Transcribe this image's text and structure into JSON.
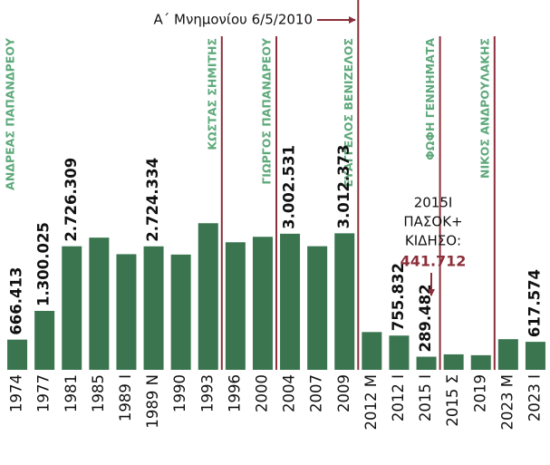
{
  "chart_data": {
    "type": "bar",
    "categories": [
      "1974",
      "1977",
      "1981",
      "1985",
      "1989 I",
      "1989 N",
      "1990",
      "1993",
      "1996",
      "2000",
      "2004",
      "2007",
      "2009",
      "2012 M",
      "2012 I",
      "2015 I",
      "2015 Σ",
      "2019",
      "2023 M",
      "2023 I"
    ],
    "values": [
      666413,
      1300025,
      2726309,
      2916735,
      2551518,
      2724334,
      2543042,
      3235017,
      2814779,
      2934948,
      3002531,
      2727279,
      3012373,
      833452,
      755832,
      289482,
      341390,
      322597,
      676166,
      617574
    ],
    "value_labels": [
      "666.413",
      "1.300.025",
      "2.726.309",
      null,
      null,
      "2.724.334",
      null,
      null,
      null,
      null,
      "3.002.531",
      null,
      "3.012.373",
      null,
      "755.832",
      "289.482",
      null,
      null,
      null,
      "617.574"
    ],
    "color": "#3b7550",
    "ylim": [
      0,
      4000000
    ],
    "leaders": [
      "ΑΝΔΡΕΑΣ ΠΑΠΑΝΔΡΕΟΥ",
      "ΚΩΣΤΑΣ ΣΗΜΙΤΗΣ",
      "ΓΙΩΡΓΟΣ ΠΑΠΑΝΔΡΕΟΥ",
      "ΕΥΑΓΓΕΛΟΣ ΒΕΝΙΖΕΛΟΣ",
      "ΦΩΦΗ ΓΕΝΝΗΜΑΤΑ",
      "ΝΙΚΟΣ ΑΝΔΡΟΥΛΑΚΗΣ"
    ],
    "memorandum": "Α΄ Μνημονίου 6/5/2010",
    "note": {
      "lines": [
        "2015Ι",
        "ΠΑΣΟΚ+",
        "ΚΙΔΗΣΟ:"
      ],
      "value": 441712,
      "value_label": "441.712"
    }
  }
}
